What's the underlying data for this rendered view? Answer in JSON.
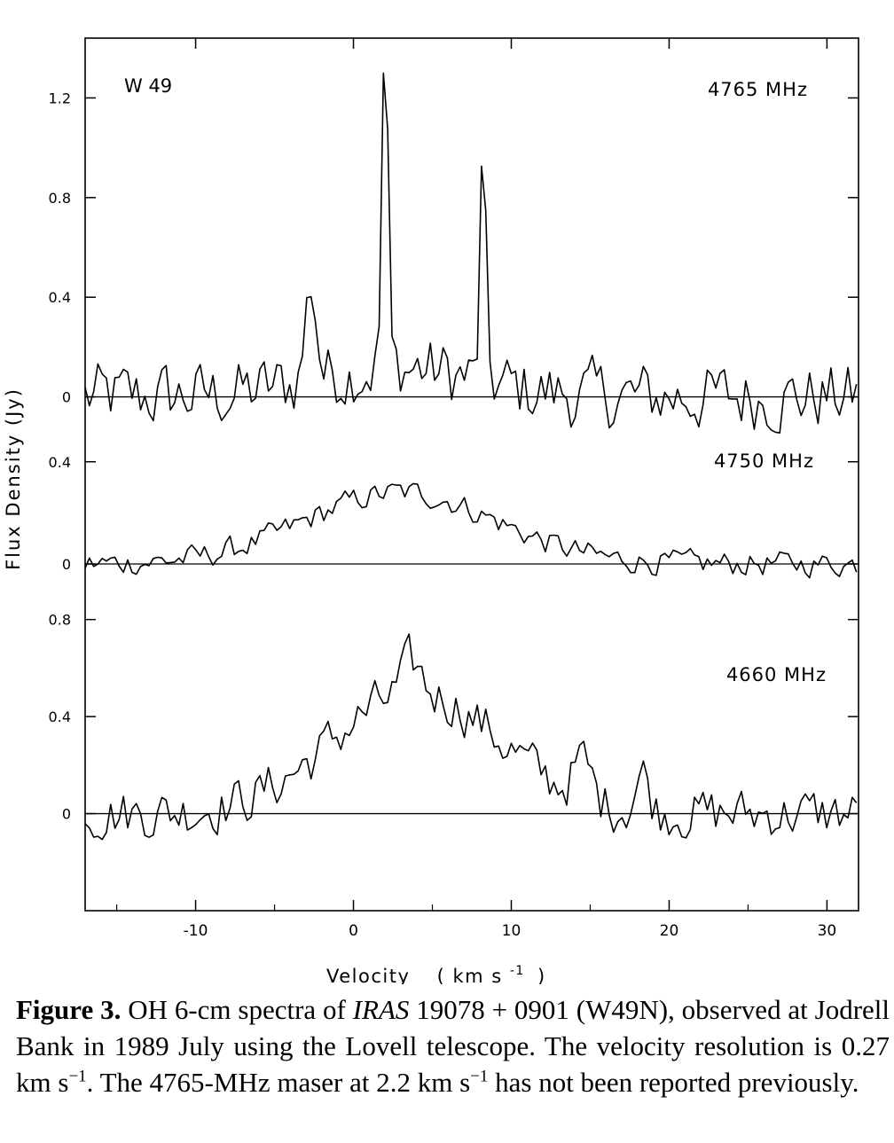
{
  "chart_data": {
    "type": "line",
    "source_label": "W 49",
    "xlabel": "Velocity",
    "xlabel_unit": "( km s",
    "xlabel_unit_exp": "-1",
    "xlabel_unit_close": ")",
    "ylabel": "Flux  Density  (Jy)",
    "xlim": [
      -17,
      32
    ],
    "x_ticks": [
      -10,
      0,
      10,
      20,
      30
    ],
    "x_tick_labels": [
      "-10",
      "0",
      "10",
      "20",
      "30"
    ],
    "panels": [
      {
        "name": "4765 MHz",
        "ylim": [
          -0.24,
          1.44
        ],
        "y_ticks": [
          0,
          0.4,
          0.8,
          1.2
        ],
        "y_tick_labels": [
          "0",
          "0.4",
          "0.8",
          "1.2"
        ],
        "peaks": [
          [
            2.0,
            1.37,
            0.25
          ],
          [
            8.2,
            0.91,
            0.25
          ],
          [
            -2.7,
            0.38,
            0.5
          ]
        ],
        "broad": [
          2.5,
          0.12,
          7.0
        ]
      },
      {
        "name": "4750 MHz",
        "ylim": [
          -0.17,
          0.42
        ],
        "y_ticks": [
          0,
          0.4
        ],
        "y_tick_labels": [
          "0",
          "0.4"
        ],
        "peaks": [],
        "broad": [
          3.0,
          0.28,
          8.5
        ]
      },
      {
        "name": "4660 MHz",
        "ylim": [
          -0.4,
          0.85
        ],
        "y_ticks": [
          0,
          0.4,
          0.8
        ],
        "y_tick_labels": [
          "0",
          "0.4",
          "0.8"
        ],
        "peaks": [
          [
            3.7,
            0.12,
            0.8
          ],
          [
            14.5,
            0.15,
            0.8
          ],
          [
            18.3,
            0.15,
            0.6
          ]
        ],
        "broad": [
          4.0,
          0.5,
          7.5
        ]
      }
    ]
  },
  "caption": {
    "label": "Figure 3.",
    "text_a": " OH 6-cm spectra of ",
    "text_italic": "IRAS",
    "text_b": " 19078 + 0901 (W49N), observed at Jodrell Bank in 1989 July using the Lovell telescope. The velocity resolution is 0.27 km s",
    "exp1": "−1",
    "text_c": ". The 4765-MHz maser at 2.2 km s",
    "exp2": "−1",
    "text_d": " has not been reported previously."
  }
}
